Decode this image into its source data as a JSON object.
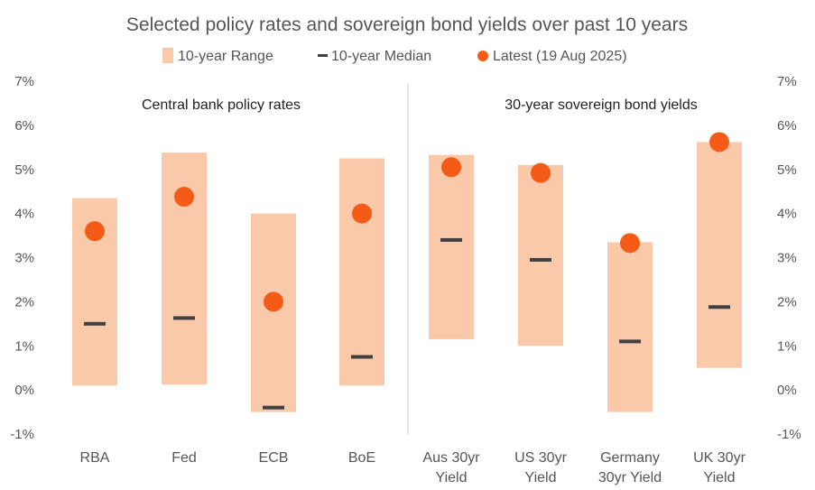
{
  "chart_data": {
    "type": "range-bar",
    "title": "Selected policy rates and sovereign bond yields over past 10 years",
    "legend": {
      "placement": "top",
      "range_label": "10-year Range",
      "median_label": "10-year Median",
      "latest_label": "Latest (19 Aug 2025)"
    },
    "panels": [
      {
        "label": "Central bank policy rates",
        "categories": [
          "RBA",
          "Fed",
          "ECB",
          "BoE"
        ]
      },
      {
        "label": "30-year sovereign bond yields",
        "categories": [
          "Aus 30yr Yield",
          "US 30yr Yield",
          "Germany 30yr Yield",
          "UK 30yr Yield"
        ]
      }
    ],
    "categories": [
      [
        "RBA"
      ],
      [
        "Fed"
      ],
      [
        "ECB"
      ],
      [
        "BoE"
      ],
      [
        "Aus 30yr",
        "Yield"
      ],
      [
        "US 30yr",
        "Yield"
      ],
      [
        "Germany",
        "30yr Yield"
      ],
      [
        "UK 30yr",
        "Yield"
      ]
    ],
    "range_low": [
      0.1,
      0.12,
      -0.5,
      0.1,
      1.15,
      1.0,
      -0.5,
      0.5
    ],
    "range_high": [
      4.35,
      5.38,
      4.0,
      5.25,
      5.33,
      5.1,
      3.35,
      5.62
    ],
    "median": [
      1.5,
      1.63,
      -0.4,
      0.75,
      3.4,
      2.95,
      1.1,
      1.88
    ],
    "latest": [
      3.6,
      4.38,
      2.0,
      4.0,
      5.05,
      4.92,
      3.33,
      5.62
    ],
    "y_ticks": [
      "-1%",
      "0%",
      "1%",
      "2%",
      "3%",
      "4%",
      "5%",
      "6%",
      "7%"
    ],
    "ylim": [
      -1,
      7
    ],
    "grid": false,
    "colors": {
      "range": "#f9c9aa",
      "median": "#404040",
      "latest": "#f35b17",
      "separator": "#d0d0d0"
    }
  }
}
